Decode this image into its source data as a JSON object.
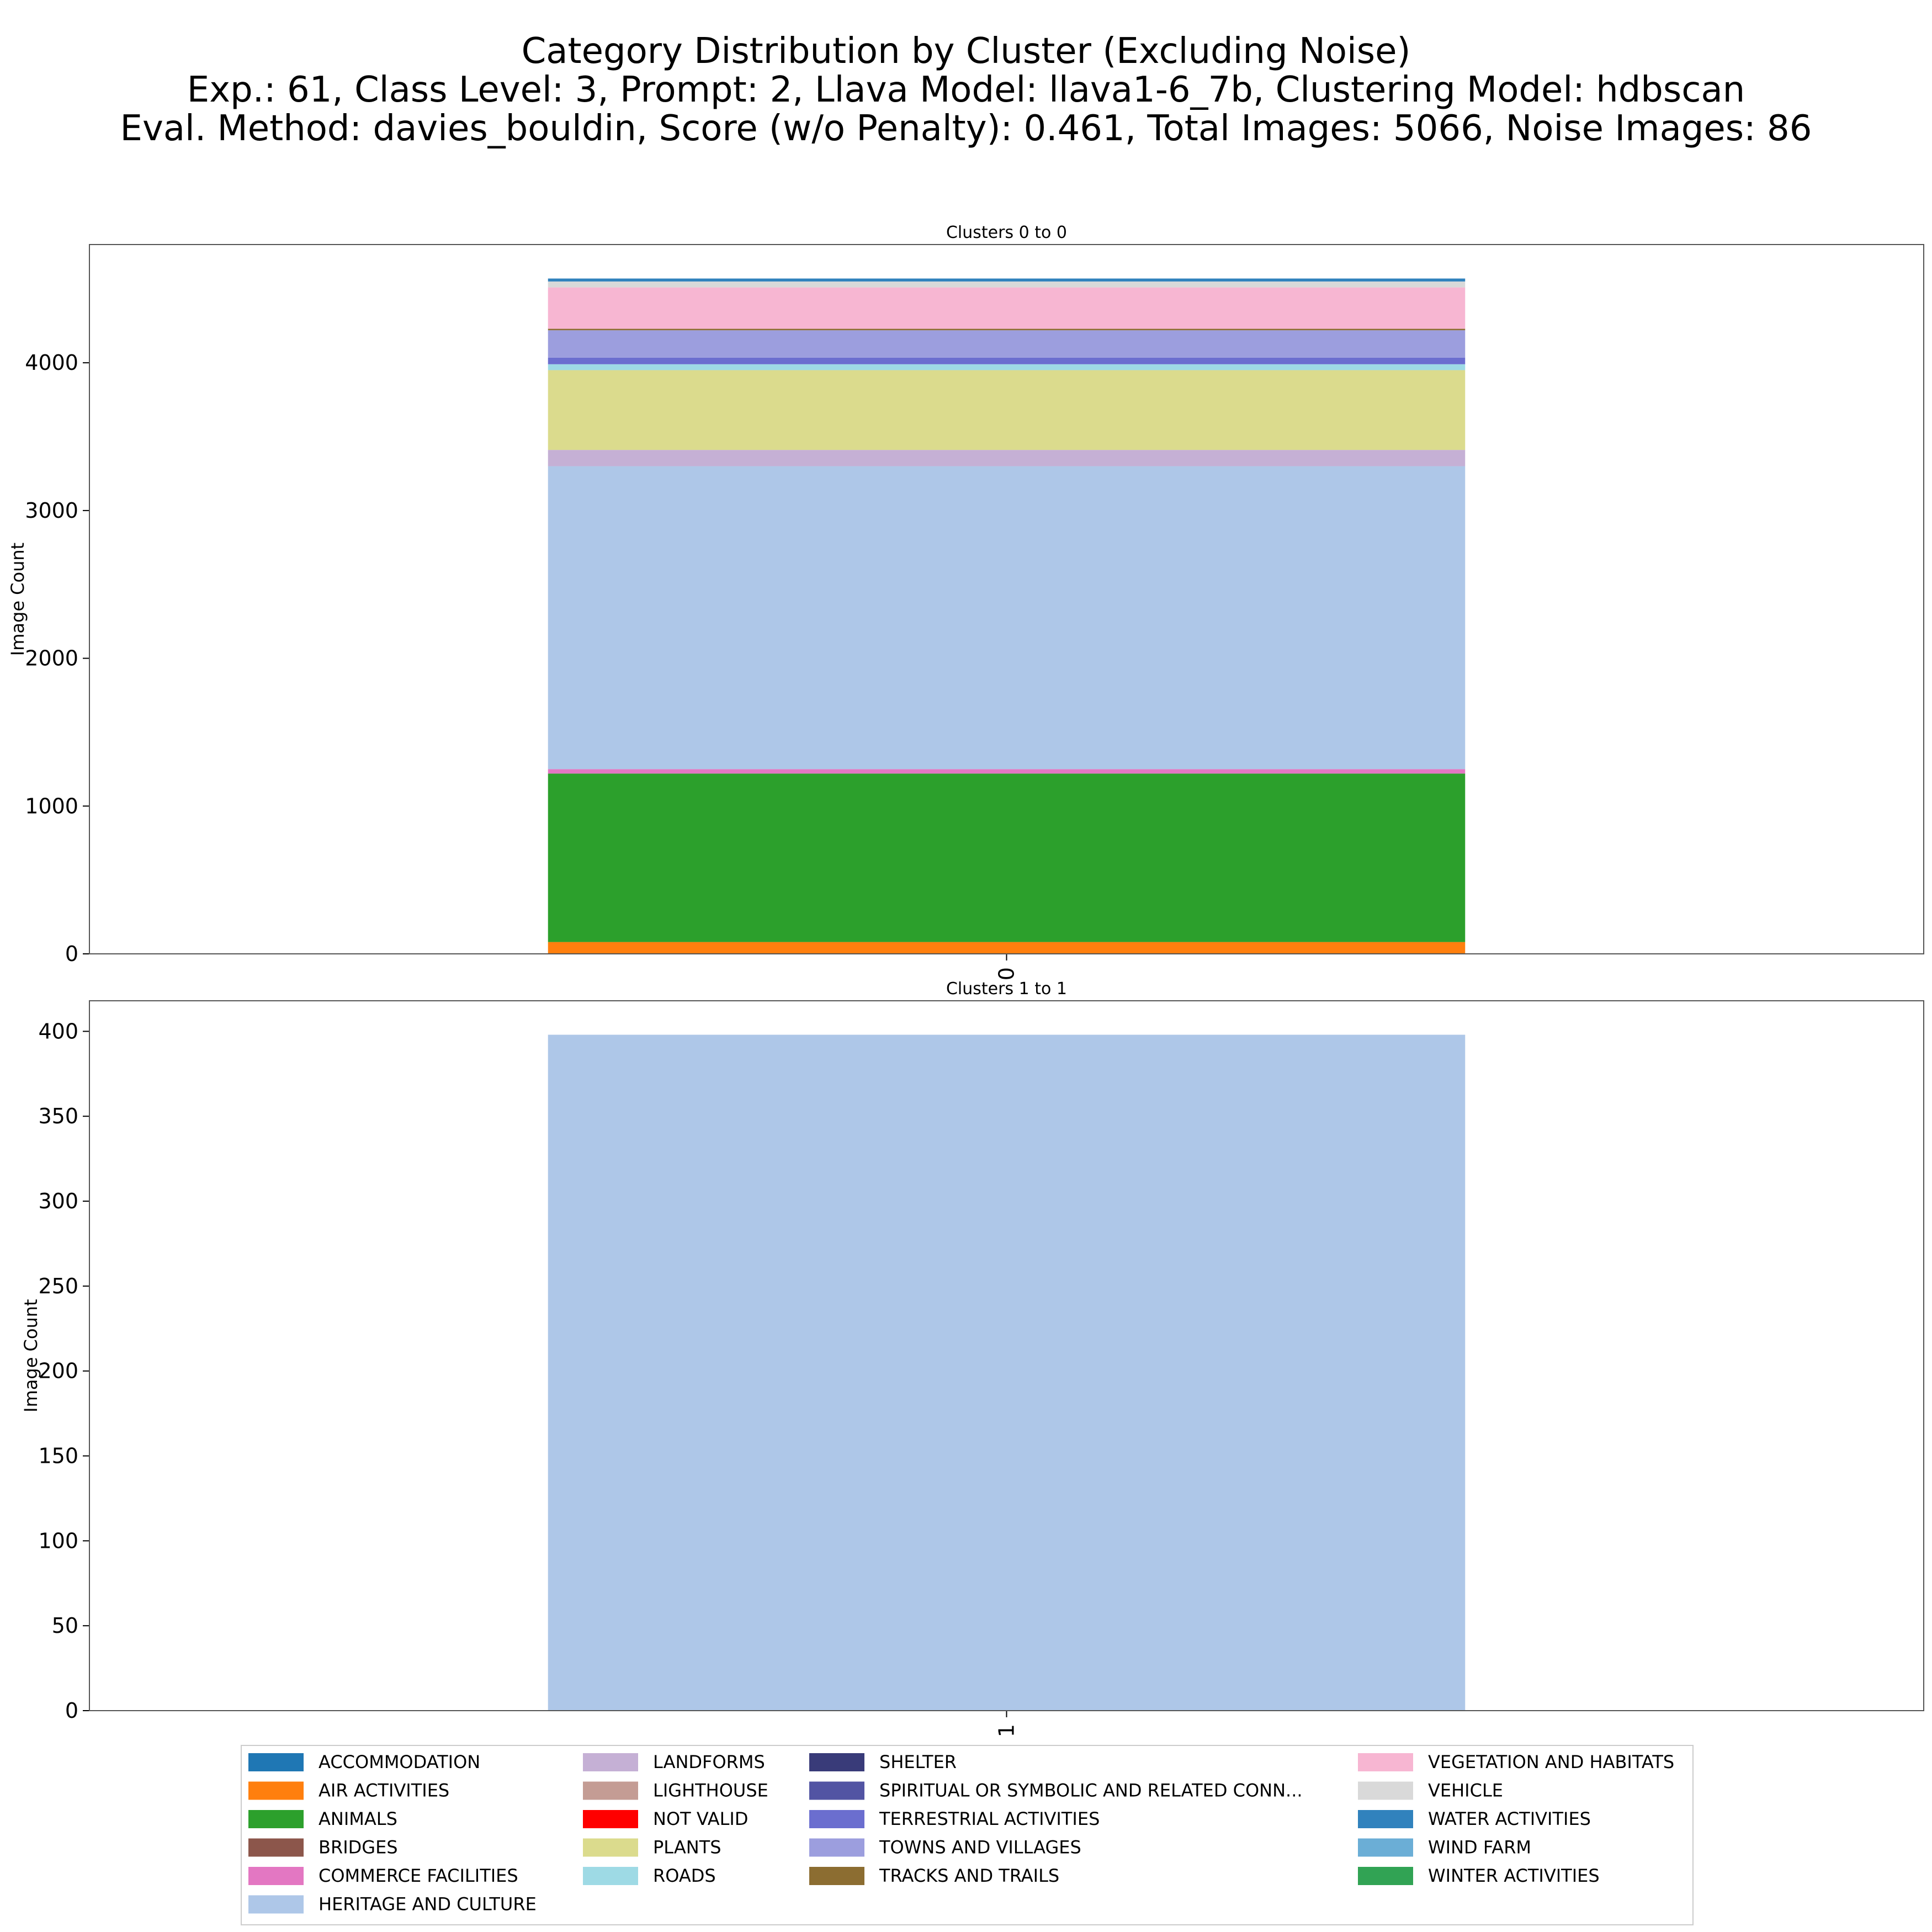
{
  "figure": {
    "title_lines": [
      "Category Distribution by Cluster (Excluding Noise)",
      "Exp.: 61, Class Level: 3, Prompt: 2, Llava Model: llava1-6_7b, Clustering Model: hdbscan",
      "Eval. Method: davies_bouldin, Score (w/o Penalty): 0.461, Total Images: 5066, Noise Images: 86"
    ]
  },
  "legend": {
    "placement": "bottom-center",
    "items": [
      {
        "label": "ACCOMMODATION",
        "color": "#1f77b4"
      },
      {
        "label": "AIR ACTIVITIES",
        "color": "#ff7f0e"
      },
      {
        "label": "ANIMALS",
        "color": "#2ca02c"
      },
      {
        "label": "BRIDGES",
        "color": "#8c564b"
      },
      {
        "label": "COMMERCE FACILITIES",
        "color": "#e377c2"
      },
      {
        "label": "HERITAGE AND CULTURE",
        "color": "#aec7e8"
      },
      {
        "label": "LANDFORMS",
        "color": "#c5b0d5"
      },
      {
        "label": "LIGHTHOUSE",
        "color": "#c49c94"
      },
      {
        "label": "NOT VALID",
        "color": "#ff0000"
      },
      {
        "label": "PLANTS",
        "color": "#dbdb8d"
      },
      {
        "label": "ROADS",
        "color": "#9edae5"
      },
      {
        "label": "SHELTER",
        "color": "#393b79"
      },
      {
        "label": "SPIRITUAL OR SYMBOLIC AND RELATED CONN...",
        "color": "#5254a3"
      },
      {
        "label": "TERRESTRIAL ACTIVITIES",
        "color": "#6b6ecf"
      },
      {
        "label": "TOWNS AND VILLAGES",
        "color": "#9c9ede"
      },
      {
        "label": "TRACKS AND TRAILS",
        "color": "#8c6d31"
      },
      {
        "label": "VEGETATION AND HABITATS",
        "color": "#f7b6d2"
      },
      {
        "label": "VEHICLE",
        "color": "#d9d9d9"
      },
      {
        "label": "WATER ACTIVITIES",
        "color": "#3182bd"
      },
      {
        "label": "WIND FARM",
        "color": "#6baed6"
      },
      {
        "label": "WINTER ACTIVITIES",
        "color": "#31a354"
      }
    ]
  },
  "chart_data": [
    {
      "type": "bar",
      "stacked": true,
      "title": "Clusters 0 to 0",
      "ylabel": "Image Count",
      "categories": [
        "0"
      ],
      "category_label_color": "#000000",
      "ylim": [
        0,
        4800
      ],
      "yticks": [
        0,
        1000,
        2000,
        3000,
        4000
      ],
      "grid": false,
      "series": [
        {
          "name": "ACCOMMODATION",
          "values": [
            0
          ]
        },
        {
          "name": "AIR ACTIVITIES",
          "values": [
            80
          ]
        },
        {
          "name": "ANIMALS",
          "values": [
            1140
          ]
        },
        {
          "name": "BRIDGES",
          "values": [
            0
          ]
        },
        {
          "name": "COMMERCE FACILITIES",
          "values": [
            30
          ]
        },
        {
          "name": "HERITAGE AND CULTURE",
          "values": [
            2050
          ]
        },
        {
          "name": "LANDFORMS",
          "values": [
            110
          ]
        },
        {
          "name": "LIGHTHOUSE",
          "values": [
            0
          ]
        },
        {
          "name": "NOT VALID",
          "values": [
            0
          ]
        },
        {
          "name": "PLANTS",
          "values": [
            540
          ]
        },
        {
          "name": "ROADS",
          "values": [
            40
          ]
        },
        {
          "name": "SHELTER",
          "values": [
            0
          ]
        },
        {
          "name": "SPIRITUAL OR SYMBOLIC AND RELATED CONN...",
          "values": [
            0
          ]
        },
        {
          "name": "TERRESTRIAL ACTIVITIES",
          "values": [
            45
          ]
        },
        {
          "name": "TOWNS AND VILLAGES",
          "values": [
            185
          ]
        },
        {
          "name": "TRACKS AND TRAILS",
          "values": [
            10
          ]
        },
        {
          "name": "VEGETATION AND HABITATS",
          "values": [
            280
          ]
        },
        {
          "name": "VEHICLE",
          "values": [
            40
          ]
        },
        {
          "name": "WATER ACTIVITIES",
          "values": [
            20
          ]
        },
        {
          "name": "WIND FARM",
          "values": [
            0
          ]
        },
        {
          "name": "WINTER ACTIVITIES",
          "values": [
            0
          ]
        }
      ]
    },
    {
      "type": "bar",
      "stacked": true,
      "title": "Clusters 1 to 1",
      "ylabel": "Image Count",
      "categories": [
        "1"
      ],
      "category_label_color": "#008000",
      "ylim": [
        0,
        418
      ],
      "yticks": [
        0,
        50,
        100,
        150,
        200,
        250,
        300,
        350,
        400
      ],
      "grid": false,
      "series": [
        {
          "name": "HERITAGE AND CULTURE",
          "values": [
            398
          ]
        }
      ]
    }
  ]
}
